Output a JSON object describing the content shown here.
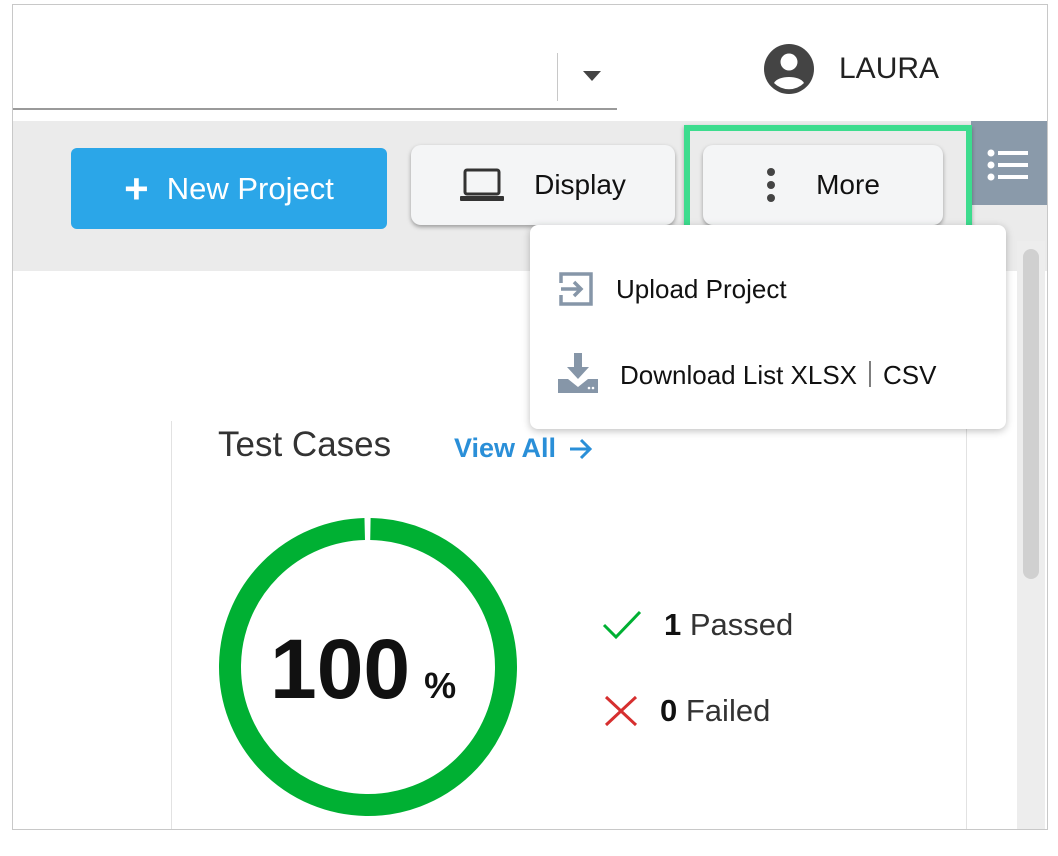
{
  "header": {
    "user_name": "LAURA",
    "icons": {
      "user": "account-circle-icon",
      "dropdown": "caret-down-icon"
    }
  },
  "toolbar": {
    "new_project_label": "New Project",
    "display_label": "Display",
    "more_label": "More"
  },
  "more_menu": {
    "items": [
      {
        "label": "Upload Project",
        "icon": "upload-icon"
      },
      {
        "label": "Download List XLSX｜CSV",
        "icon": "download-icon"
      }
    ]
  },
  "test_cases": {
    "title": "Test Cases",
    "view_all_label": "View All",
    "percent": "100",
    "percent_sign": "%",
    "passed_count": "1",
    "passed_label": "Passed",
    "failed_count": "0",
    "failed_label": "Failed"
  },
  "colors": {
    "primary": "#2ba6e8",
    "highlight": "#3ddc8e",
    "pass": "#00b033",
    "fail": "#d62f2f"
  }
}
